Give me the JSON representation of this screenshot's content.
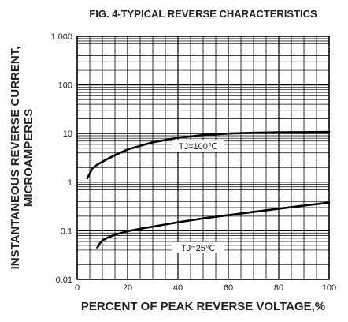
{
  "chart_data": {
    "type": "line",
    "title": "FIG. 4-TYPICAL REVERSE CHARACTERISTICS",
    "xlabel": "PERCENT OF PEAK REVERSE VOLTAGE,%",
    "ylabel_line1": "INSTANTANEOUS REVERSE CURRENT,",
    "ylabel_line2": "MICROAMPERES",
    "xlim": [
      0,
      100
    ],
    "ylim": [
      0.01,
      1000
    ],
    "yscale": "log",
    "grid": true,
    "x_ticks": [
      0,
      20,
      40,
      60,
      80,
      100
    ],
    "x_tick_labels": [
      "0",
      "20",
      "40",
      "60",
      "80",
      "100"
    ],
    "y_ticks": [
      0.01,
      0.1,
      1,
      10,
      100,
      1000
    ],
    "y_tick_labels": [
      "0.01",
      "0.1",
      "1",
      "10",
      "100",
      "1,000"
    ],
    "series": [
      {
        "name": "TJ=100℃",
        "x": [
          4,
          6,
          8,
          12,
          16,
          20,
          25,
          30,
          40,
          50,
          60,
          70,
          80,
          90,
          100
        ],
        "y": [
          1.2,
          1.9,
          2.3,
          3.0,
          3.8,
          4.7,
          5.6,
          6.6,
          8.2,
          9.3,
          10.0,
          10.4,
          10.6,
          10.7,
          10.8
        ]
      },
      {
        "name": "TJ=25℃",
        "x": [
          8,
          9,
          10,
          12,
          15,
          20,
          25,
          30,
          40,
          50,
          60,
          70,
          80,
          90,
          100
        ],
        "y": [
          0.045,
          0.055,
          0.063,
          0.072,
          0.083,
          0.098,
          0.11,
          0.122,
          0.15,
          0.18,
          0.21,
          0.245,
          0.285,
          0.33,
          0.38
        ]
      }
    ],
    "annotations": [
      {
        "text": "TJ=100℃",
        "x": 48,
        "y": 5.5
      },
      {
        "text": "TJ=25℃",
        "x": 48,
        "y": 0.045
      }
    ]
  }
}
